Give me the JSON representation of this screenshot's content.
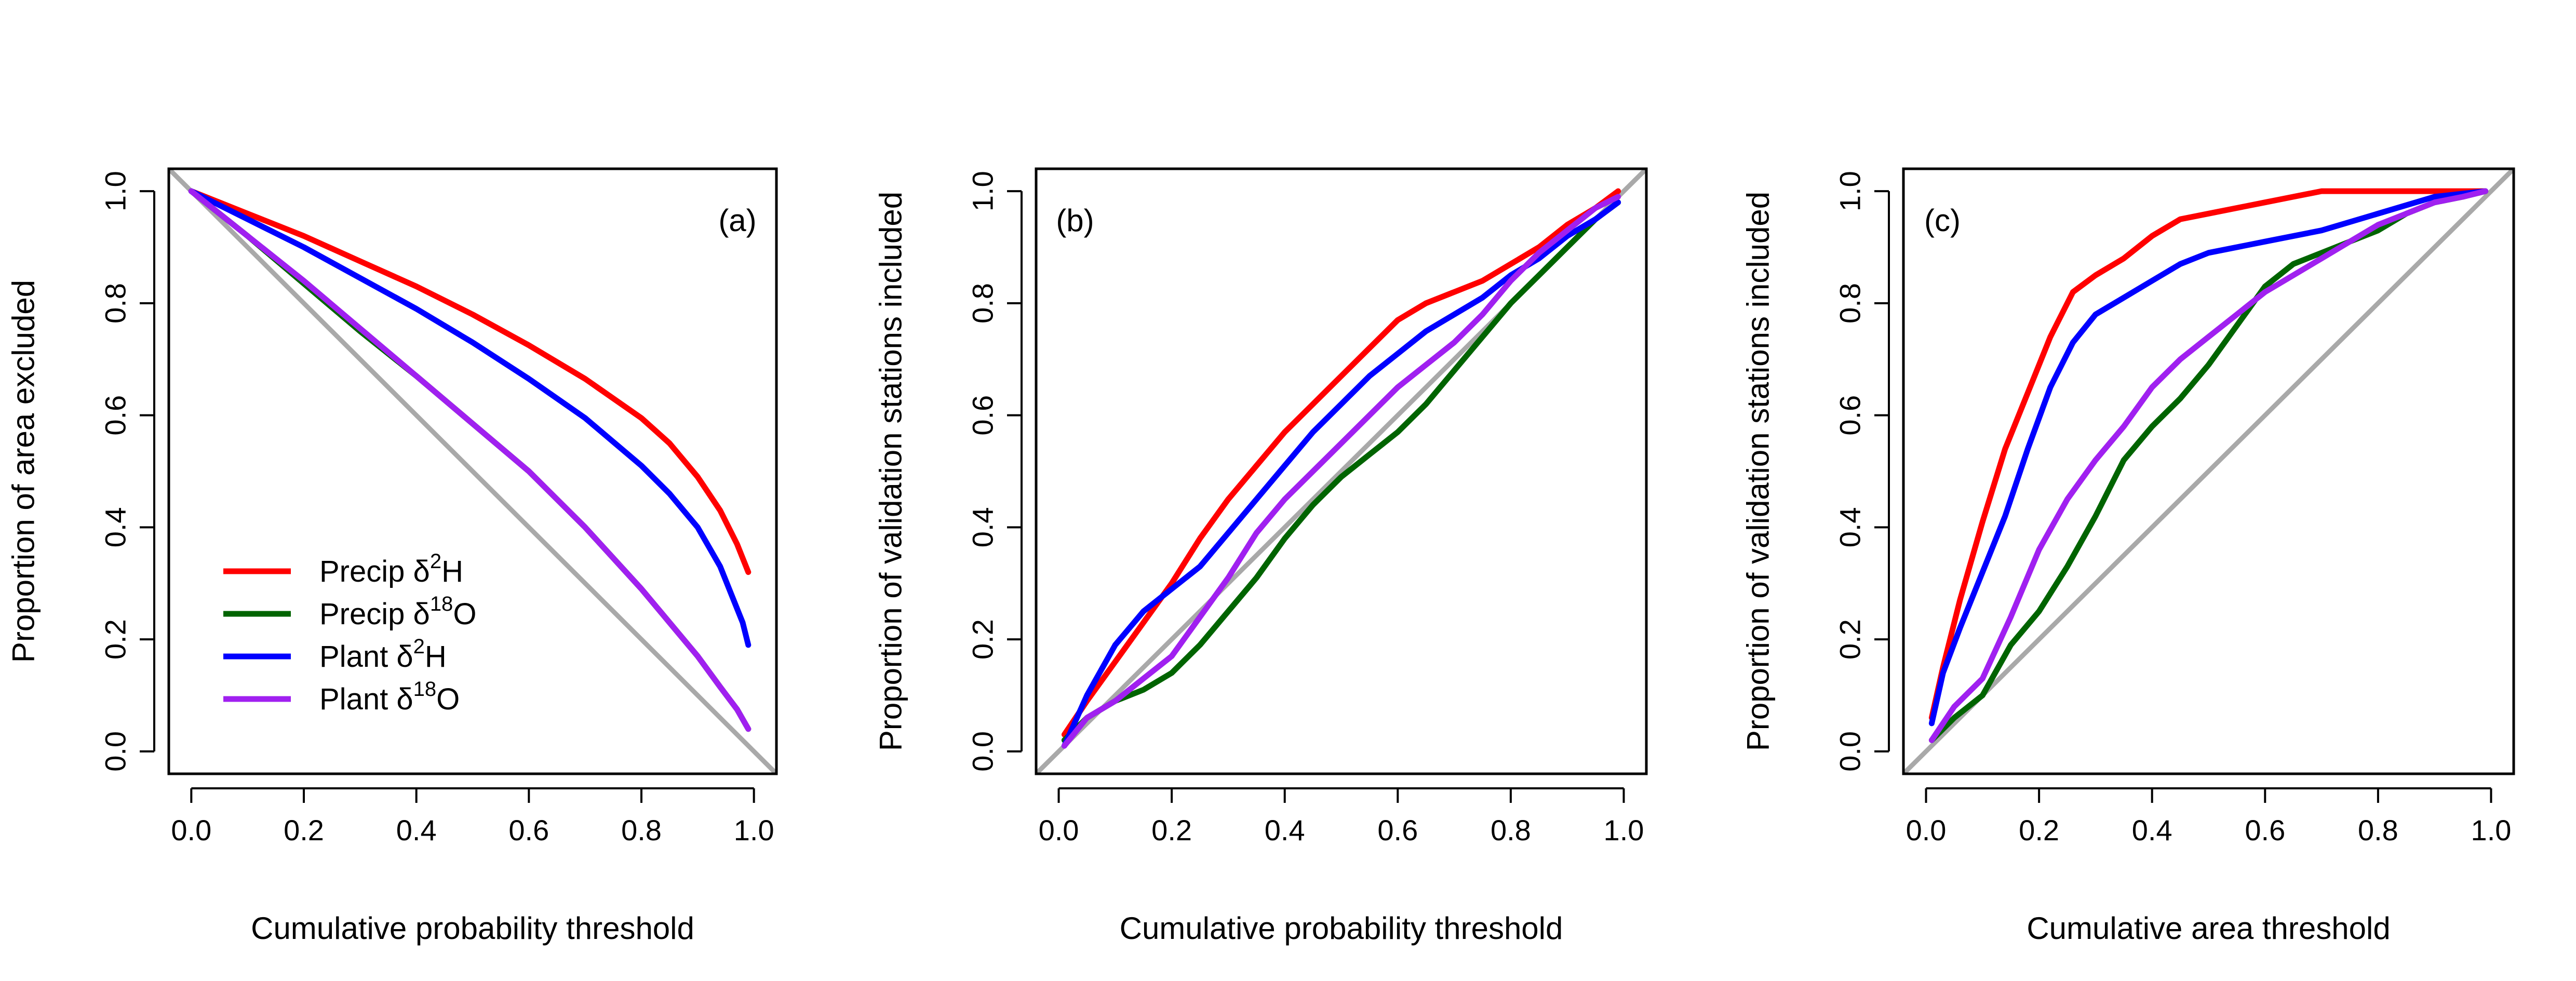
{
  "colors": {
    "precip_d2h": "#ff0000",
    "precip_d18o": "#006400",
    "plant_d2h": "#0000ff",
    "plant_d18o": "#a020f0",
    "reference_line": "#a9a9a9",
    "axes": "#000000"
  },
  "legend": {
    "panel": "a",
    "placement": "bottom-left",
    "entries": [
      {
        "series": "precip_d2h",
        "prefix": "Precip δ",
        "sup": "2",
        "suffix": "H"
      },
      {
        "series": "precip_d18o",
        "prefix": "Precip δ",
        "sup": "18",
        "suffix": "O"
      },
      {
        "series": "plant_d2h",
        "prefix": "Plant δ",
        "sup": "2",
        "suffix": "H"
      },
      {
        "series": "plant_d18o",
        "prefix": "Plant δ",
        "sup": "18",
        "suffix": "O"
      }
    ]
  },
  "chart_data": [
    {
      "type": "line",
      "tag": "(a)",
      "xlabel": "Cumulative probability threshold",
      "ylabel": "Proportion of area excluded",
      "xlim": [
        0,
        1
      ],
      "ylim": [
        0,
        1
      ],
      "xticks": [
        "0.0",
        "0.2",
        "0.4",
        "0.6",
        "0.8",
        "1.0"
      ],
      "yticks": [
        "0.0",
        "0.2",
        "0.4",
        "0.6",
        "0.8",
        "1.0"
      ],
      "reference_line": "y = 1 - x",
      "series": [
        {
          "key": "precip_d2h",
          "x": [
            0,
            0.1,
            0.2,
            0.3,
            0.4,
            0.5,
            0.6,
            0.7,
            0.8,
            0.85,
            0.9,
            0.94,
            0.97,
            0.99
          ],
          "y": [
            1,
            0.96,
            0.92,
            0.875,
            0.83,
            0.78,
            0.725,
            0.665,
            0.595,
            0.55,
            0.49,
            0.43,
            0.37,
            0.32
          ]
        },
        {
          "key": "precip_d18o",
          "x": [
            0,
            0.1,
            0.2,
            0.3,
            0.4,
            0.5,
            0.6,
            0.7,
            0.8,
            0.85,
            0.9,
            0.94,
            0.97,
            0.99
          ],
          "y": [
            1,
            0.92,
            0.835,
            0.75,
            0.67,
            0.585,
            0.5,
            0.4,
            0.29,
            0.23,
            0.17,
            0.115,
            0.075,
            0.04
          ]
        },
        {
          "key": "plant_d2h",
          "x": [
            0,
            0.1,
            0.2,
            0.3,
            0.4,
            0.5,
            0.6,
            0.7,
            0.8,
            0.85,
            0.9,
            0.94,
            0.96,
            0.98,
            0.99
          ],
          "y": [
            1,
            0.95,
            0.9,
            0.845,
            0.79,
            0.73,
            0.665,
            0.595,
            0.51,
            0.46,
            0.4,
            0.33,
            0.28,
            0.23,
            0.19
          ]
        },
        {
          "key": "plant_d18o",
          "x": [
            0,
            0.1,
            0.2,
            0.3,
            0.4,
            0.5,
            0.6,
            0.7,
            0.8,
            0.85,
            0.9,
            0.94,
            0.97,
            0.99
          ],
          "y": [
            1,
            0.92,
            0.84,
            0.755,
            0.67,
            0.585,
            0.5,
            0.4,
            0.29,
            0.23,
            0.17,
            0.115,
            0.075,
            0.04
          ]
        }
      ]
    },
    {
      "type": "line",
      "tag": "(b)",
      "xlabel": "Cumulative probability threshold",
      "ylabel": "Proportion of validation stations included",
      "xlim": [
        0,
        1
      ],
      "ylim": [
        0,
        1
      ],
      "xticks": [
        "0.0",
        "0.2",
        "0.4",
        "0.6",
        "0.8",
        "1.0"
      ],
      "yticks": [
        "0.0",
        "0.2",
        "0.4",
        "0.6",
        "0.8",
        "1.0"
      ],
      "reference_line": "y = x",
      "series": [
        {
          "key": "precip_d2h",
          "x": [
            0.01,
            0.05,
            0.1,
            0.15,
            0.2,
            0.25,
            0.3,
            0.35,
            0.4,
            0.45,
            0.5,
            0.55,
            0.6,
            0.65,
            0.7,
            0.75,
            0.8,
            0.85,
            0.9,
            0.95,
            0.99
          ],
          "y": [
            0.03,
            0.09,
            0.16,
            0.23,
            0.3,
            0.38,
            0.45,
            0.51,
            0.57,
            0.62,
            0.67,
            0.72,
            0.77,
            0.8,
            0.82,
            0.84,
            0.87,
            0.9,
            0.94,
            0.97,
            1
          ]
        },
        {
          "key": "precip_d18o",
          "x": [
            0.01,
            0.05,
            0.1,
            0.15,
            0.2,
            0.25,
            0.3,
            0.35,
            0.4,
            0.45,
            0.5,
            0.55,
            0.6,
            0.65,
            0.7,
            0.75,
            0.8,
            0.85,
            0.9,
            0.95,
            0.99
          ],
          "y": [
            0.02,
            0.06,
            0.09,
            0.11,
            0.14,
            0.19,
            0.25,
            0.31,
            0.38,
            0.44,
            0.49,
            0.53,
            0.57,
            0.62,
            0.68,
            0.74,
            0.8,
            0.85,
            0.9,
            0.95,
            0.98
          ]
        },
        {
          "key": "plant_d2h",
          "x": [
            0.01,
            0.05,
            0.1,
            0.15,
            0.2,
            0.25,
            0.3,
            0.35,
            0.4,
            0.45,
            0.5,
            0.55,
            0.6,
            0.65,
            0.7,
            0.75,
            0.8,
            0.85,
            0.9,
            0.95,
            0.99
          ],
          "y": [
            0.01,
            0.1,
            0.19,
            0.25,
            0.29,
            0.33,
            0.39,
            0.45,
            0.51,
            0.57,
            0.62,
            0.67,
            0.71,
            0.75,
            0.78,
            0.81,
            0.85,
            0.88,
            0.92,
            0.95,
            0.98
          ]
        },
        {
          "key": "plant_d18o",
          "x": [
            0.01,
            0.05,
            0.1,
            0.15,
            0.2,
            0.25,
            0.3,
            0.35,
            0.4,
            0.45,
            0.5,
            0.55,
            0.6,
            0.65,
            0.7,
            0.75,
            0.8,
            0.85,
            0.9,
            0.95,
            0.99
          ],
          "y": [
            0.01,
            0.06,
            0.09,
            0.13,
            0.17,
            0.24,
            0.31,
            0.39,
            0.45,
            0.5,
            0.55,
            0.6,
            0.65,
            0.69,
            0.73,
            0.78,
            0.84,
            0.89,
            0.93,
            0.97,
            0.99
          ]
        }
      ]
    },
    {
      "type": "line",
      "tag": "(c)",
      "xlabel": "Cumulative area threshold",
      "ylabel": "Proportion of validation stations included",
      "xlim": [
        0,
        1
      ],
      "ylim": [
        0,
        1
      ],
      "xticks": [
        "0.0",
        "0.2",
        "0.4",
        "0.6",
        "0.8",
        "1.0"
      ],
      "yticks": [
        "0.0",
        "0.2",
        "0.4",
        "0.6",
        "0.8",
        "1.0"
      ],
      "reference_line": "y = x",
      "series": [
        {
          "key": "precip_d2h",
          "x": [
            0.01,
            0.03,
            0.06,
            0.1,
            0.14,
            0.18,
            0.22,
            0.26,
            0.3,
            0.35,
            0.4,
            0.45,
            0.5,
            0.55,
            0.6,
            0.65,
            0.7,
            0.8,
            0.9,
            0.99
          ],
          "y": [
            0.06,
            0.15,
            0.27,
            0.41,
            0.54,
            0.64,
            0.74,
            0.82,
            0.85,
            0.88,
            0.92,
            0.95,
            0.96,
            0.97,
            0.98,
            0.99,
            1,
            1,
            1,
            1
          ]
        },
        {
          "key": "precip_d18o",
          "x": [
            0.01,
            0.05,
            0.1,
            0.15,
            0.2,
            0.25,
            0.3,
            0.35,
            0.4,
            0.45,
            0.5,
            0.55,
            0.6,
            0.65,
            0.7,
            0.75,
            0.8,
            0.85,
            0.9,
            0.95,
            0.99
          ],
          "y": [
            0.02,
            0.06,
            0.1,
            0.19,
            0.25,
            0.33,
            0.42,
            0.52,
            0.58,
            0.63,
            0.69,
            0.76,
            0.83,
            0.87,
            0.89,
            0.91,
            0.93,
            0.96,
            0.98,
            0.99,
            1
          ]
        },
        {
          "key": "plant_d2h",
          "x": [
            0.01,
            0.03,
            0.06,
            0.1,
            0.14,
            0.18,
            0.22,
            0.26,
            0.3,
            0.35,
            0.4,
            0.45,
            0.5,
            0.6,
            0.7,
            0.8,
            0.9,
            0.99
          ],
          "y": [
            0.05,
            0.14,
            0.22,
            0.32,
            0.42,
            0.54,
            0.65,
            0.73,
            0.78,
            0.81,
            0.84,
            0.87,
            0.89,
            0.91,
            0.93,
            0.96,
            0.99,
            1
          ]
        },
        {
          "key": "plant_d18o",
          "x": [
            0.01,
            0.05,
            0.1,
            0.15,
            0.2,
            0.25,
            0.3,
            0.35,
            0.4,
            0.45,
            0.5,
            0.55,
            0.6,
            0.65,
            0.7,
            0.75,
            0.8,
            0.85,
            0.9,
            0.95,
            0.99
          ],
          "y": [
            0.02,
            0.08,
            0.13,
            0.24,
            0.36,
            0.45,
            0.52,
            0.58,
            0.65,
            0.7,
            0.74,
            0.78,
            0.82,
            0.85,
            0.88,
            0.91,
            0.94,
            0.96,
            0.98,
            0.99,
            1
          ]
        }
      ]
    }
  ]
}
